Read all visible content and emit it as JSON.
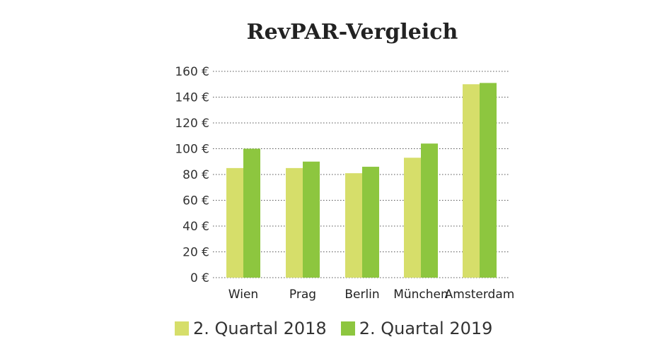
{
  "chart_data": {
    "type": "bar",
    "title": "RevPAR-Vergleich",
    "categories": [
      "Wien",
      "Prag",
      "Berlin",
      "München",
      "Amsterdam"
    ],
    "series": [
      {
        "name": "2. Quartal 2018",
        "color": "#d6de6a",
        "values": [
          85,
          85,
          81,
          93,
          150
        ]
      },
      {
        "name": "2. Quartal 2019",
        "color": "#8dc63f",
        "values": [
          100,
          90,
          86,
          104,
          151
        ]
      }
    ],
    "yticks": [
      "0 €",
      "20 €",
      "40 €",
      "60 €",
      "80 €",
      "100 €",
      "120 €",
      "140 €",
      "160 €"
    ],
    "ylim": [
      0,
      160
    ],
    "grid": true,
    "legend_position": "bottom"
  }
}
